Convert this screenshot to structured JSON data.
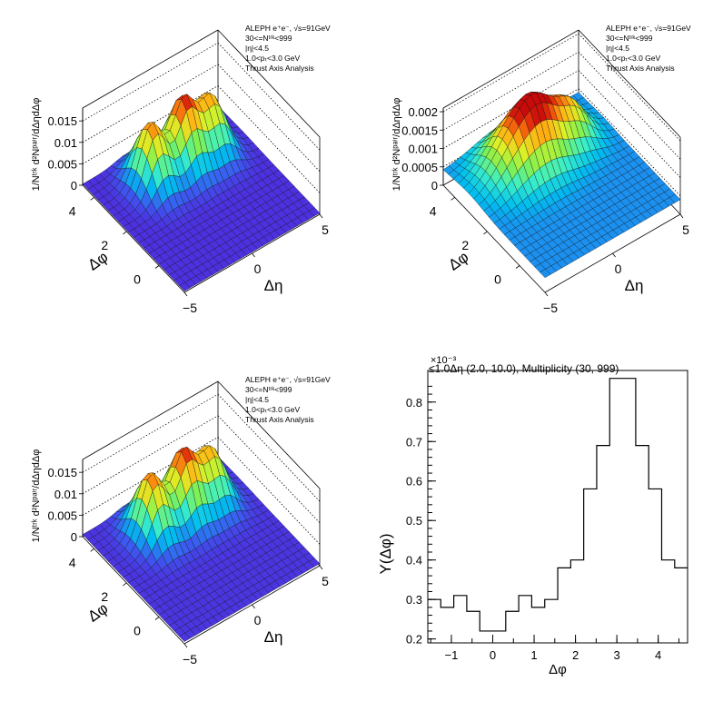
{
  "panels": [
    {
      "id": "top-left",
      "legend": [
        "ALEPH e⁺e⁻, √s=91GeV",
        "30<=Nᵗʳᵏ<999",
        "|η|<4.5",
        "1.0<pₜ<3.0 GeV",
        "Thrust Axis Analysis"
      ],
      "zlabel": "1/Nᵗʳᵏ d²Nᵖᵃⁱʳ/dΔηdΔφ",
      "zticks": [
        "0",
        "0.005",
        "0.01",
        "0.015"
      ],
      "yticks": [
        "0",
        "2",
        "4"
      ],
      "xticks": [
        "−5",
        "0",
        "5"
      ],
      "xlabel": "Δη",
      "ylabel": "Δφ",
      "zmax": 0.018,
      "pedestal": 0.0003,
      "peaks": [
        [
          -1.8,
          3.14,
          0.0145,
          0.8,
          0.7
        ],
        [
          0.6,
          3.14,
          0.016,
          0.8,
          0.7
        ],
        [
          2.6,
          3.14,
          0.013,
          0.8,
          0.7
        ]
      ]
    },
    {
      "id": "top-right",
      "legend": [
        "ALEPH e⁺e⁻, √s=91GeV",
        "30<=Nᵗʳᵏ<999",
        "|η|<4.5",
        "1.0<pₜ<3.0 GeV",
        "Thrust Axis Analysis"
      ],
      "zlabel": "1/Nᵗʳᵏ d²Nᵖᵃⁱʳ/dΔηdΔφ",
      "zticks": [
        "0",
        "0.0005",
        "0.001",
        "0.0015",
        "0.002"
      ],
      "yticks": [
        "0",
        "2",
        "4"
      ],
      "xticks": [
        "−5",
        "0",
        "5"
      ],
      "xlabel": "Δη",
      "ylabel": "Δφ",
      "zmax": 0.0021,
      "pedestal": 0.0004,
      "peaks": [
        [
          -1.5,
          3.14,
          0.0012,
          1.6,
          0.9
        ],
        [
          0.3,
          3.14,
          0.001,
          1.2,
          0.8
        ],
        [
          2.5,
          3.14,
          0.0009,
          1.0,
          0.7
        ]
      ]
    },
    {
      "id": "bottom-left",
      "legend": [
        "ALEPH e⁺e⁻, √s=91GeV",
        "30<=Nᵗʳᵏ<999",
        "|η|<4.5",
        "1.0<pₜ<3.0 GeV",
        "Thrust Axis Analysis"
      ],
      "zlabel": "1/Nᵗʳᵏ d²Nᵖᵃⁱʳ/dΔηdΔφ",
      "zticks": [
        "0",
        "0.005",
        "0.01",
        "0.015"
      ],
      "yticks": [
        "0",
        "2",
        "4"
      ],
      "xticks": [
        "−5",
        "0",
        "5"
      ],
      "xlabel": "Δη",
      "ylabel": "Δφ",
      "zmax": 0.018,
      "pedestal": 0.0005,
      "peaks": [
        [
          -1.8,
          3.14,
          0.0145,
          0.8,
          0.7
        ],
        [
          0.6,
          3.14,
          0.0155,
          0.8,
          0.7
        ],
        [
          2.6,
          3.14,
          0.0125,
          0.8,
          0.7
        ]
      ]
    }
  ],
  "chart_data": {
    "type": "line",
    "title": "≤1.0Δη (2.0, 10.0), Multiplicity (30, 999)",
    "multiplier": "×10⁻³",
    "xlabel": "Δφ",
    "ylabel": "Y(Δφ)",
    "xlim": [
      -1.57,
      4.71
    ],
    "ylim": [
      0.19,
      0.88
    ],
    "xticks": [
      -1,
      0,
      1,
      2,
      3,
      4
    ],
    "xtick_labels": [
      "−1",
      "0",
      "1",
      "2",
      "3",
      "4"
    ],
    "yticks": [
      0.2,
      0.3,
      0.4,
      0.5,
      0.6,
      0.7,
      0.8
    ],
    "ytick_labels": [
      "0.2",
      "0.3",
      "0.4",
      "0.5",
      "0.6",
      "0.7",
      "0.8"
    ],
    "bin_edges": [
      -1.571,
      -1.257,
      -0.942,
      -0.628,
      -0.314,
      0,
      0.314,
      0.628,
      0.942,
      1.257,
      1.571,
      1.885,
      2.199,
      2.513,
      2.827,
      3.142,
      3.456,
      3.77,
      4.084,
      4.398,
      4.712
    ],
    "values": [
      0.3,
      0.28,
      0.31,
      0.27,
      0.22,
      0.22,
      0.27,
      0.31,
      0.28,
      0.3,
      0.38,
      0.4,
      0.58,
      0.69,
      0.86,
      0.86,
      0.69,
      0.58,
      0.4,
      0.38
    ],
    "grid": false
  }
}
